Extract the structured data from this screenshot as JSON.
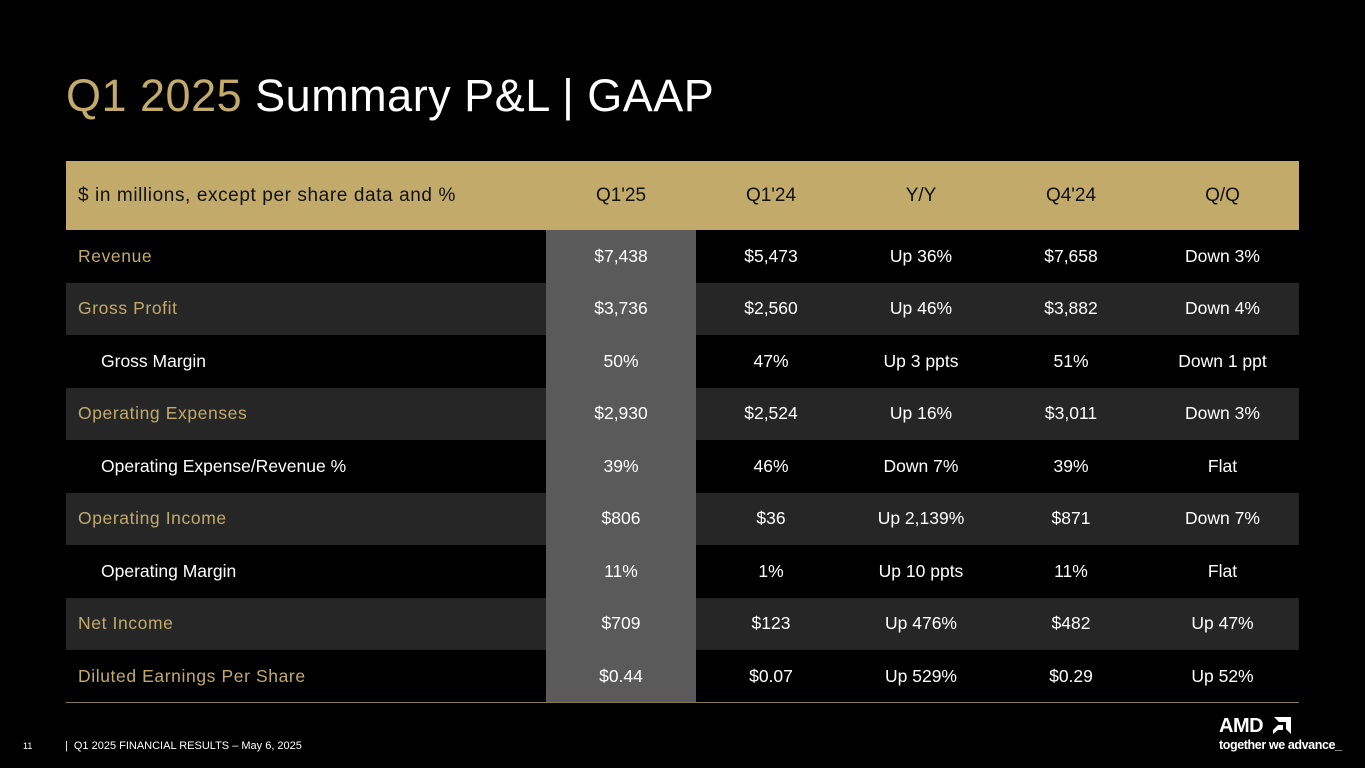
{
  "title": {
    "period": "Q1 2025",
    "rest": "Summary P&L  |  GAAP"
  },
  "table": {
    "headers": [
      "$ in millions, except per share data and %",
      "Q1'25",
      "Q1'24",
      "Y/Y",
      "Q4'24",
      "Q/Q"
    ],
    "rows": [
      {
        "label": "Revenue",
        "q125": "$7,438",
        "q124": "$5,473",
        "yy": "Up 36%",
        "q424": "$7,658",
        "qq": "Down 3%"
      },
      {
        "label": "Gross Profit",
        "q125": "$3,736",
        "q124": "$2,560",
        "yy": "Up 46%",
        "q424": "$3,882",
        "qq": "Down 4%"
      },
      {
        "label": "Gross Margin",
        "q125": "50%",
        "q124": "47%",
        "yy": "Up 3 ppts",
        "q424": "51%",
        "qq": "Down 1 ppt"
      },
      {
        "label": "Operating Expenses",
        "q125": "$2,930",
        "q124": "$2,524",
        "yy": "Up 16%",
        "q424": "$3,011",
        "qq": "Down 3%"
      },
      {
        "label": "Operating Expense/Revenue %",
        "q125": "39%",
        "q124": "46%",
        "yy": "Down 7%",
        "q424": "39%",
        "qq": "Flat"
      },
      {
        "label": "Operating Income",
        "q125": "$806",
        "q124": "$36",
        "yy": "Up 2,139%",
        "q424": "$871",
        "qq": "Down 7%"
      },
      {
        "label": "Operating Margin",
        "q125": "11%",
        "q124": "1%",
        "yy": "Up 10 ppts",
        "q424": "11%",
        "qq": "Flat"
      },
      {
        "label": "Net Income",
        "q125": "$709",
        "q124": "$123",
        "yy": "Up 476%",
        "q424": "$482",
        "qq": "Up 47%"
      },
      {
        "label": "Diluted Earnings Per Share",
        "q125": "$0.44",
        "q124": "$0.07",
        "yy": "Up 529%",
        "q424": "$0.29",
        "qq": "Up 52%"
      }
    ]
  },
  "footer": {
    "page_number": "11",
    "separator": "|",
    "text": "Q1 2025 FINANCIAL RESULTS – May 6, 2025"
  },
  "logo": {
    "wordmark": "AMD",
    "tagline": "together we advance_"
  },
  "colors": {
    "accent_gold": "#c2aa6b",
    "background": "#000000",
    "row_shade": "#262626",
    "highlight_column": "#5a5a5a"
  }
}
